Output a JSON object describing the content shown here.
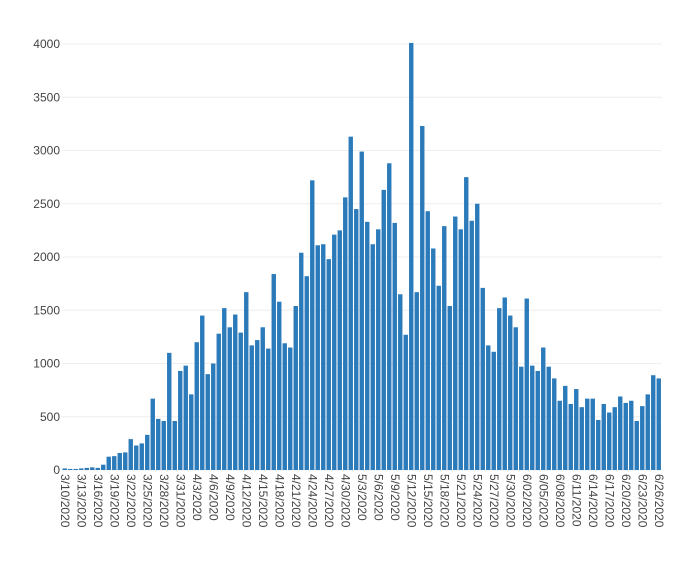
{
  "chart_data": {
    "type": "bar",
    "color": "#2b7bba",
    "grid": true,
    "ylim": [
      0,
      4000
    ],
    "yticks": [
      0,
      500,
      1000,
      1500,
      2000,
      2500,
      3000,
      3500,
      4000
    ],
    "categories": [
      "3/10/2020",
      null,
      null,
      "3/13/2020",
      null,
      null,
      "3/16/2020",
      null,
      null,
      "3/19/2020",
      null,
      null,
      "3/22/2020",
      null,
      null,
      "3/25/2020",
      null,
      null,
      "3/28/2020",
      null,
      null,
      "3/31/2020",
      null,
      null,
      "4/3/2020",
      null,
      null,
      "4/6/2020",
      null,
      null,
      "4/9/2020",
      null,
      null,
      "4/12/2020",
      null,
      null,
      "4/15/2020",
      null,
      null,
      "4/18/2020",
      null,
      null,
      "4/21/2020",
      null,
      null,
      "4/24/2020",
      null,
      null,
      "4/27/2020",
      null,
      null,
      "4/30/2020",
      null,
      null,
      "5/3/2020",
      null,
      null,
      "5/6/2020",
      null,
      null,
      "5/9/2020",
      null,
      null,
      "5/12/2020",
      null,
      null,
      "5/15/2020",
      null,
      null,
      "5/18/2020",
      null,
      null,
      "5/21/2020",
      null,
      null,
      "5/24/2020",
      null,
      null,
      "5/27/2020",
      null,
      null,
      "5/30/2020",
      null,
      null,
      "6/02/2020",
      null,
      null,
      "6/05/2020",
      null,
      null,
      "6/08/2020",
      null,
      null,
      "6/11/2020",
      null,
      null,
      "6/14/2020",
      null,
      null,
      "6/17/2020",
      null,
      null,
      "6/20/2020",
      null,
      null,
      "6/23/2020",
      null,
      null,
      "6/26/2020"
    ],
    "values": [
      15,
      10,
      10,
      15,
      20,
      25,
      20,
      50,
      125,
      130,
      160,
      165,
      290,
      230,
      250,
      330,
      670,
      480,
      460,
      1100,
      460,
      930,
      980,
      710,
      1200,
      1450,
      900,
      1000,
      1280,
      1520,
      1340,
      1460,
      1290,
      1670,
      1170,
      1220,
      1340,
      1140,
      1840,
      1580,
      1190,
      1150,
      1540,
      2040,
      1820,
      2720,
      2110,
      2120,
      1980,
      2210,
      2250,
      2560,
      3130,
      2450,
      2990,
      2330,
      2120,
      2260,
      2630,
      2880,
      2320,
      1650,
      1270,
      4010,
      1670,
      3230,
      2430,
      2080,
      1730,
      2290,
      1540,
      2380,
      2260,
      2750,
      2340,
      2500,
      1710,
      1170,
      1110,
      1520,
      1620,
      1450,
      1340,
      970,
      1610,
      980,
      930,
      1150,
      970,
      860,
      650,
      790,
      620,
      760,
      590,
      670,
      670,
      470,
      620,
      540,
      590,
      690,
      630,
      650,
      460,
      600,
      710,
      890,
      860
    ]
  }
}
